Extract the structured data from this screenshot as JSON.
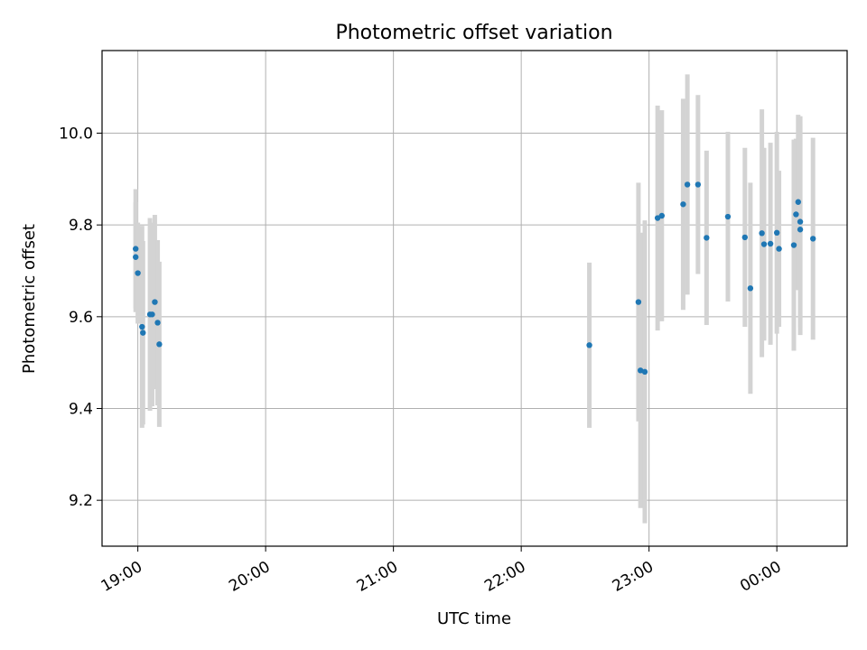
{
  "chart_data": {
    "type": "scatter",
    "title": "Photometric offset variation",
    "xlabel": "UTC time",
    "ylabel": "Photometric offset",
    "x_ticks": [
      "19:00",
      "20:00",
      "21:00",
      "22:00",
      "23:00",
      "00:00"
    ],
    "x_tick_hours": [
      19,
      20,
      21,
      22,
      23,
      24
    ],
    "xlim_hours": [
      18.72,
      24.55
    ],
    "y_ticks": [
      "9.2",
      "9.4",
      "9.6",
      "9.8",
      "10.0"
    ],
    "y_tick_values": [
      9.2,
      9.4,
      9.6,
      9.8,
      10.0
    ],
    "ylim": [
      9.1,
      10.18
    ],
    "grid": true,
    "colors": {
      "points": "#1f77b4",
      "errorbars": "#d3d3d3",
      "grid": "#b0b0b0"
    },
    "points": [
      {
        "x": 18.983,
        "y": 9.748,
        "err": 0.13
      },
      {
        "x": 18.983,
        "y": 9.73,
        "err": 0.12
      },
      {
        "x": 19.0,
        "y": 9.695,
        "err": 0.11
      },
      {
        "x": 19.033,
        "y": 9.578,
        "err": 0.22
      },
      {
        "x": 19.04,
        "y": 9.565,
        "err": 0.2
      },
      {
        "x": 19.095,
        "y": 9.605,
        "err": 0.21
      },
      {
        "x": 19.112,
        "y": 9.605,
        "err": 0.2
      },
      {
        "x": 19.133,
        "y": 9.632,
        "err": 0.19
      },
      {
        "x": 19.155,
        "y": 9.587,
        "err": 0.18
      },
      {
        "x": 19.168,
        "y": 9.54,
        "err": 0.18
      },
      {
        "x": 22.533,
        "y": 9.538,
        "err": 0.18
      },
      {
        "x": 22.917,
        "y": 9.632,
        "err": 0.26
      },
      {
        "x": 22.933,
        "y": 9.483,
        "err": 0.3
      },
      {
        "x": 22.967,
        "y": 9.48,
        "err": 0.33
      },
      {
        "x": 23.067,
        "y": 9.815,
        "err": 0.245
      },
      {
        "x": 23.1,
        "y": 9.82,
        "err": 0.23
      },
      {
        "x": 23.267,
        "y": 9.845,
        "err": 0.23
      },
      {
        "x": 23.3,
        "y": 9.888,
        "err": 0.24
      },
      {
        "x": 23.383,
        "y": 9.888,
        "err": 0.195
      },
      {
        "x": 23.45,
        "y": 9.772,
        "err": 0.19
      },
      {
        "x": 23.617,
        "y": 9.818,
        "err": 0.185
      },
      {
        "x": 23.75,
        "y": 9.773,
        "err": 0.195
      },
      {
        "x": 23.793,
        "y": 9.662,
        "err": 0.23
      },
      {
        "x": 23.883,
        "y": 9.782,
        "err": 0.27
      },
      {
        "x": 23.9,
        "y": 9.758,
        "err": 0.21
      },
      {
        "x": 23.95,
        "y": 9.759,
        "err": 0.22
      },
      {
        "x": 24.0,
        "y": 9.783,
        "err": 0.22
      },
      {
        "x": 24.017,
        "y": 9.748,
        "err": 0.17
      },
      {
        "x": 24.133,
        "y": 9.756,
        "err": 0.23
      },
      {
        "x": 24.15,
        "y": 9.823,
        "err": 0.165
      },
      {
        "x": 24.167,
        "y": 9.85,
        "err": 0.19
      },
      {
        "x": 24.183,
        "y": 9.79,
        "err": 0.23
      },
      {
        "x": 24.183,
        "y": 9.807,
        "err": 0.23
      },
      {
        "x": 24.283,
        "y": 9.77,
        "err": 0.22
      }
    ]
  }
}
